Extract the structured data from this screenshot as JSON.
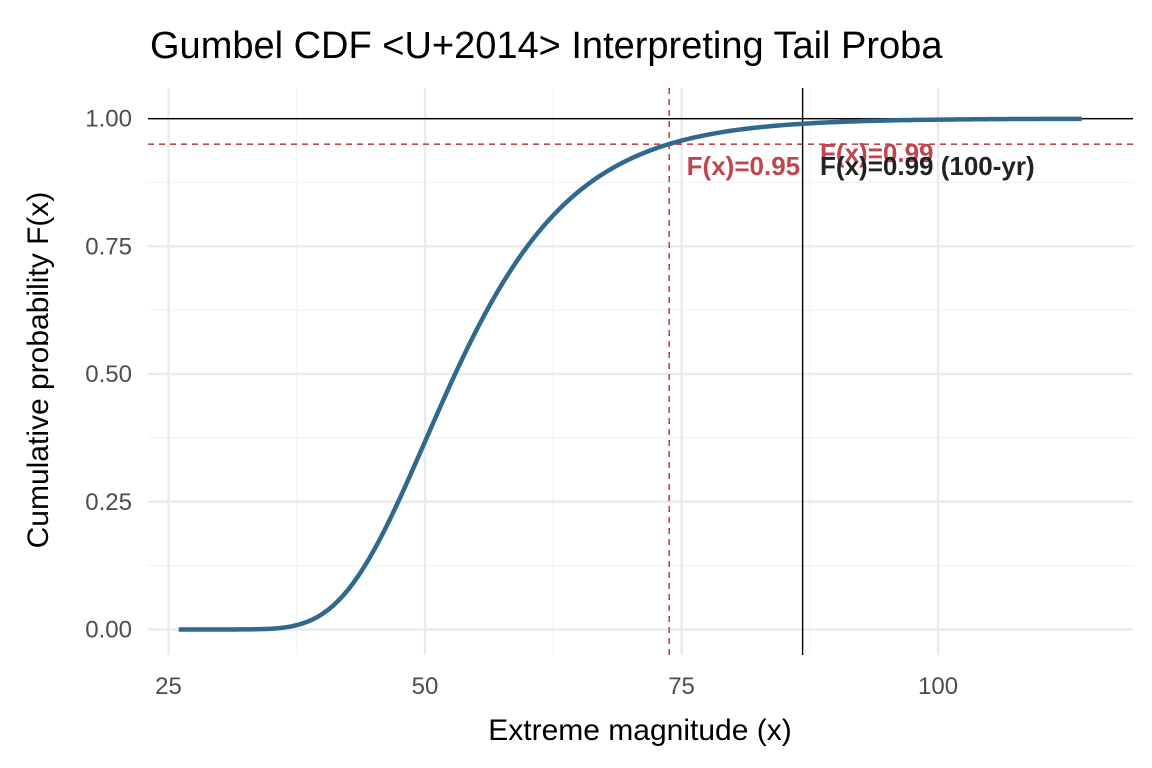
{
  "chart_data": {
    "type": "line",
    "title": "Gumbel CDF <U+2014> Interpreting Tail Proba",
    "xlabel": "Extreme magnitude (x)",
    "ylabel": "Cumulative probability  F(x)",
    "xlim": [
      23,
      119
    ],
    "ylim": [
      -0.05,
      1.06
    ],
    "x_ticks": [
      25,
      50,
      75,
      100
    ],
    "x_tick_labels": [
      "25",
      "50",
      "75",
      "100"
    ],
    "y_ticks": [
      0.0,
      0.25,
      0.5,
      0.75,
      1.0
    ],
    "y_tick_labels": [
      "0.00",
      "0.25",
      "0.50",
      "0.75",
      "1.00"
    ],
    "grid": true,
    "series": [
      {
        "distribution": "Gumbel CDF",
        "location": 50,
        "scale": 8,
        "x_range": [
          26,
          114
        ],
        "color": "#31688e",
        "x": [
          26,
          30,
          34,
          36,
          38,
          40,
          42,
          44,
          46,
          48,
          50,
          52,
          54,
          56,
          58,
          60,
          62,
          64,
          66,
          68,
          70,
          72,
          74,
          76,
          78,
          80,
          82,
          84,
          86,
          88,
          90,
          94,
          98,
          102,
          106,
          110,
          114
        ],
        "y": [
          0.0,
          0.0,
          0.0006,
          0.004,
          0.0143,
          0.0376,
          0.0785,
          0.1366,
          0.2083,
          0.2877,
          0.3679,
          0.4437,
          0.5119,
          0.5713,
          0.6219,
          0.6922,
          0.7298,
          0.7615,
          0.788,
          0.8102,
          0.8452,
          0.8708,
          0.8923,
          0.9101,
          0.925,
          0.9374,
          0.9477,
          0.9563,
          0.9635,
          0.9696,
          0.9747,
          0.9822,
          0.9876,
          0.9914,
          0.994,
          0.9958,
          0.9971
        ]
      }
    ],
    "reference_lines": [
      {
        "orientation": "horizontal",
        "y": 1.0,
        "style": "solid",
        "color": "#000000"
      },
      {
        "orientation": "horizontal",
        "y": 0.95,
        "style": "dashed",
        "color": "#c0454f"
      },
      {
        "orientation": "vertical",
        "x": 73.8,
        "style": "dashed",
        "color": "#c0454f"
      },
      {
        "orientation": "vertical",
        "x": 86.8,
        "style": "solid",
        "color": "#000000"
      }
    ],
    "annotations": [
      {
        "text": "F(x)=0.95",
        "x": 75.5,
        "y": 0.89,
        "color": "#c0454f"
      },
      {
        "text": "F(x)=0.99",
        "x": 88.5,
        "y": 0.915,
        "color": "#c0454f"
      },
      {
        "text": "F(x)=0.99 (100-yr)",
        "x": 88.5,
        "y": 0.89,
        "color": "#222222"
      }
    ]
  }
}
